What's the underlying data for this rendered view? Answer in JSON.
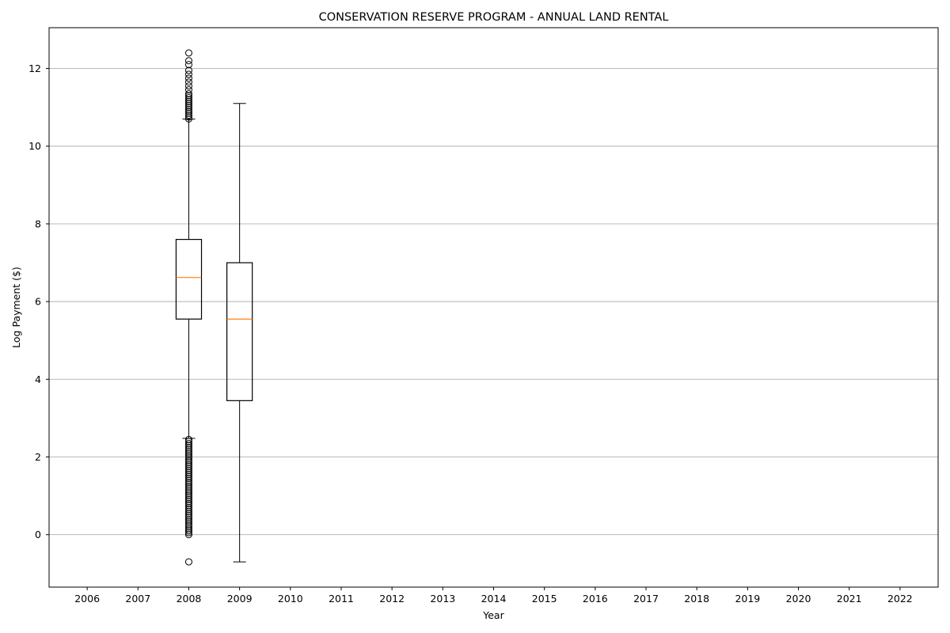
{
  "chart_data": {
    "type": "box",
    "title": "CONSERVATION RESERVE PROGRAM - ANNUAL LAND RENTAL",
    "xlabel": "Year",
    "ylabel": "Log Payment ($)",
    "categories": [
      "2006",
      "2007",
      "2008",
      "2009",
      "2010",
      "2011",
      "2012",
      "2013",
      "2014",
      "2015",
      "2016",
      "2017",
      "2018",
      "2019",
      "2020",
      "2021",
      "2022"
    ],
    "y_ticks": [
      "0",
      "2",
      "4",
      "6",
      "8",
      "10",
      "12"
    ],
    "ylim": [
      -1.35,
      13.05
    ],
    "grid": "y",
    "colors": {
      "box": "#000000",
      "median": "#ff7f0e",
      "grid": "#b0b0b0"
    },
    "boxes": [
      {
        "year": "2008",
        "whisker_low": 2.48,
        "q1": 5.55,
        "median": 6.62,
        "q3": 7.6,
        "whisker_high": 10.7,
        "outliers_high": [
          10.7,
          10.75,
          10.8,
          10.85,
          10.9,
          10.95,
          11.0,
          11.05,
          11.1,
          11.15,
          11.2,
          11.25,
          11.3,
          11.35,
          11.45,
          11.55,
          11.65,
          11.75,
          11.85,
          11.95,
          12.1,
          12.2,
          12.4
        ],
        "outliers_low": [
          -0.7,
          0.0,
          0.05,
          0.1,
          0.15,
          0.2,
          0.25,
          0.3,
          0.35,
          0.4,
          0.45,
          0.5,
          0.55,
          0.6,
          0.65,
          0.7,
          0.75,
          0.8,
          0.85,
          0.9,
          0.95,
          1.0,
          1.05,
          1.1,
          1.15,
          1.2,
          1.25,
          1.3,
          1.35,
          1.4,
          1.45,
          1.5,
          1.55,
          1.6,
          1.65,
          1.7,
          1.75,
          1.8,
          1.85,
          1.9,
          1.95,
          2.0,
          2.05,
          2.1,
          2.15,
          2.2,
          2.25,
          2.3,
          2.35,
          2.4,
          2.45
        ]
      },
      {
        "year": "2009",
        "whisker_low": -0.7,
        "q1": 3.45,
        "median": 5.55,
        "q3": 7.0,
        "whisker_high": 11.1,
        "outliers_high": [],
        "outliers_low": []
      }
    ]
  }
}
